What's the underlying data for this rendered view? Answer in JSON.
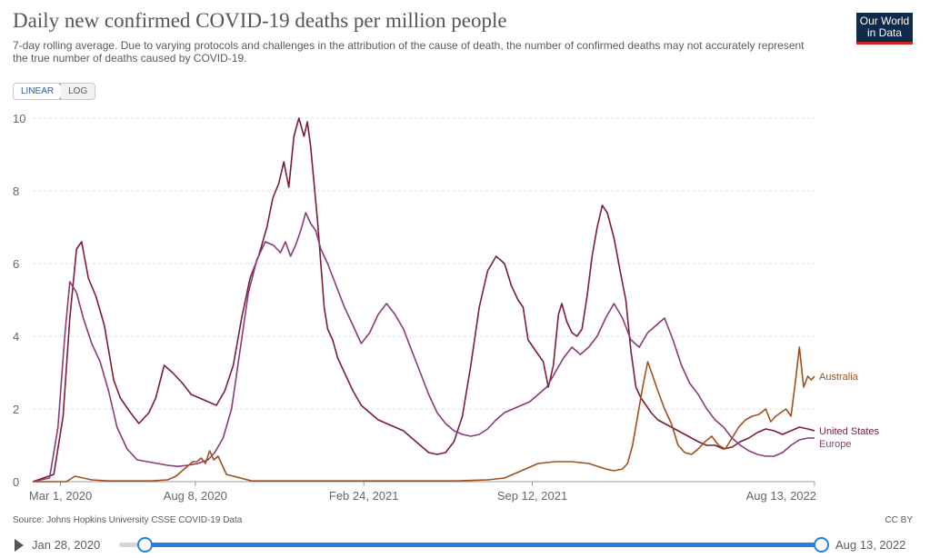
{
  "header": {
    "title": "Daily new confirmed COVID-19 deaths per million people",
    "subtitle": "7-day rolling average. Due to varying protocols and challenges in the attribution of the cause of death, the number of confirmed deaths may not accurately represent the true number of deaths caused by COVID-19.",
    "logo_line1": "Our World",
    "logo_line2": "in Data"
  },
  "controls": {
    "linear_label": "LINEAR",
    "log_label": "LOG"
  },
  "footer": {
    "source": "Source: Johns Hopkins University CSSE COVID-19 Data",
    "license": "CC BY"
  },
  "timeline": {
    "start_label": "Jan 28, 2020",
    "end_label": "Aug 13, 2022"
  },
  "colors": {
    "united_states": "#7a1e33",
    "europe": "#8a3a78",
    "australia": "#a0501c",
    "grid": "#dddddd",
    "axis_text": "#666666"
  },
  "chart_data": {
    "type": "line",
    "title": "Daily new confirmed COVID-19 deaths per million people",
    "xlabel": "",
    "ylabel": "",
    "ylim": [
      0,
      10
    ],
    "yticks": [
      "0",
      "2",
      "4",
      "6",
      "8",
      "10"
    ],
    "xlim": [
      0,
      928
    ],
    "x_unit": "days since Jan 28, 2020",
    "xticks": [
      {
        "x": 33,
        "label": "Mar 1, 2020"
      },
      {
        "x": 193,
        "label": "Aug 8, 2020"
      },
      {
        "x": 393,
        "label": "Feb 24, 2021"
      },
      {
        "x": 593,
        "label": "Sep 12, 2021"
      },
      {
        "x": 928,
        "label": "Aug 13, 2022"
      }
    ],
    "series": [
      {
        "name": "United States",
        "key": "united_states",
        "x": [
          0,
          25,
          36,
          44,
          52,
          58,
          66,
          75,
          85,
          96,
          104,
          116,
          126,
          138,
          146,
          156,
          166,
          178,
          188,
          198,
          208,
          218,
          228,
          238,
          248,
          258,
          268,
          278,
          285,
          292,
          298,
          304,
          310,
          316,
          322,
          326,
          330,
          334,
          338,
          342,
          346,
          350,
          356,
          362,
          370,
          380,
          390,
          400,
          410,
          420,
          430,
          440,
          450,
          460,
          470,
          480,
          490,
          500,
          510,
          520,
          530,
          540,
          550,
          560,
          568,
          576,
          582,
          588,
          594,
          600,
          606,
          612,
          618,
          624,
          628,
          634,
          640,
          646,
          652,
          658,
          664,
          670,
          676,
          682,
          690,
          698,
          704,
          710,
          716,
          722,
          728,
          734,
          742,
          750,
          758,
          766,
          774,
          782,
          790,
          800,
          810,
          820,
          830,
          840,
          850,
          860,
          870,
          880,
          890,
          900,
          910,
          920,
          928
        ],
        "values": [
          0,
          0.2,
          1.8,
          4.5,
          6.4,
          6.6,
          5.6,
          5.1,
          4.3,
          2.8,
          2.3,
          1.9,
          1.6,
          1.9,
          2.3,
          3.2,
          3.0,
          2.7,
          2.4,
          2.3,
          2.2,
          2.1,
          2.5,
          3.2,
          4.5,
          5.6,
          6.2,
          7.0,
          7.8,
          8.2,
          8.8,
          8.1,
          9.5,
          10.0,
          9.5,
          9.9,
          9.2,
          8.2,
          7.2,
          6.0,
          4.8,
          4.2,
          3.9,
          3.4,
          3.0,
          2.5,
          2.1,
          1.9,
          1.7,
          1.6,
          1.5,
          1.4,
          1.2,
          1.0,
          0.8,
          0.75,
          0.8,
          1.1,
          1.8,
          3.2,
          4.8,
          5.8,
          6.2,
          6.0,
          5.4,
          5.0,
          4.8,
          3.9,
          3.7,
          3.5,
          3.3,
          2.6,
          3.2,
          4.6,
          4.9,
          4.4,
          4.1,
          4.0,
          4.2,
          5.1,
          6.2,
          7.0,
          7.6,
          7.4,
          6.7,
          5.7,
          5.0,
          3.6,
          2.6,
          2.3,
          2.1,
          1.9,
          1.7,
          1.6,
          1.5,
          1.4,
          1.3,
          1.2,
          1.1,
          1.0,
          1.0,
          0.9,
          0.95,
          1.1,
          1.2,
          1.35,
          1.45,
          1.4,
          1.3,
          1.4,
          1.5,
          1.45,
          1.4
        ]
      },
      {
        "name": "Europe",
        "key": "europe",
        "x": [
          0,
          20,
          30,
          38,
          44,
          52,
          60,
          70,
          80,
          90,
          100,
          112,
          124,
          136,
          148,
          160,
          172,
          184,
          196,
          208,
          216,
          226,
          236,
          246,
          256,
          266,
          276,
          286,
          294,
          300,
          306,
          312,
          318,
          324,
          330,
          336,
          342,
          350,
          360,
          370,
          380,
          390,
          400,
          410,
          420,
          430,
          440,
          450,
          460,
          470,
          480,
          490,
          500,
          510,
          520,
          530,
          540,
          550,
          560,
          570,
          580,
          590,
          600,
          610,
          620,
          630,
          640,
          650,
          660,
          670,
          680,
          690,
          700,
          710,
          720,
          730,
          740,
          750,
          760,
          770,
          780,
          790,
          800,
          810,
          820,
          830,
          840,
          850,
          860,
          870,
          880,
          890,
          900,
          910,
          920,
          928
        ],
        "values": [
          0,
          0.1,
          1.5,
          4.0,
          5.5,
          5.2,
          4.5,
          3.8,
          3.3,
          2.5,
          1.5,
          0.9,
          0.6,
          0.55,
          0.5,
          0.45,
          0.42,
          0.45,
          0.5,
          0.6,
          0.8,
          1.2,
          2.0,
          3.6,
          5.2,
          6.1,
          6.6,
          6.5,
          6.3,
          6.6,
          6.2,
          6.5,
          6.9,
          7.4,
          7.1,
          6.9,
          6.4,
          6.0,
          5.4,
          4.8,
          4.3,
          3.8,
          4.1,
          4.6,
          4.9,
          4.6,
          4.2,
          3.6,
          3.0,
          2.4,
          1.9,
          1.6,
          1.4,
          1.3,
          1.25,
          1.3,
          1.45,
          1.7,
          1.9,
          2.0,
          2.1,
          2.2,
          2.4,
          2.6,
          3.0,
          3.4,
          3.7,
          3.5,
          3.7,
          4.0,
          4.5,
          4.9,
          4.5,
          3.9,
          3.7,
          4.1,
          4.3,
          4.5,
          3.9,
          3.2,
          2.7,
          2.4,
          2.0,
          1.7,
          1.5,
          1.2,
          1.0,
          0.85,
          0.75,
          0.7,
          0.7,
          0.8,
          1.0,
          1.15,
          1.2,
          1.2
        ]
      },
      {
        "name": "Australia",
        "key": "australia",
        "x": [
          0,
          40,
          50,
          60,
          70,
          90,
          120,
          140,
          160,
          170,
          180,
          190,
          195,
          200,
          205,
          210,
          215,
          220,
          230,
          260,
          300,
          350,
          400,
          450,
          500,
          540,
          560,
          580,
          600,
          620,
          640,
          660,
          680,
          690,
          700,
          706,
          712,
          718,
          724,
          730,
          736,
          742,
          750,
          758,
          766,
          774,
          782,
          790,
          798,
          806,
          814,
          822,
          830,
          838,
          846,
          854,
          862,
          870,
          876,
          882,
          888,
          894,
          900,
          905,
          910,
          915,
          920,
          924,
          928
        ],
        "values": [
          0,
          0,
          0.15,
          0.1,
          0.05,
          0.02,
          0.02,
          0.02,
          0.05,
          0.15,
          0.35,
          0.55,
          0.55,
          0.65,
          0.5,
          0.85,
          0.6,
          0.7,
          0.2,
          0.02,
          0.02,
          0.02,
          0.02,
          0.02,
          0.02,
          0.05,
          0.1,
          0.3,
          0.5,
          0.55,
          0.55,
          0.5,
          0.35,
          0.3,
          0.35,
          0.5,
          1.0,
          1.8,
          2.6,
          3.3,
          2.9,
          2.5,
          2.0,
          1.6,
          1.0,
          0.8,
          0.75,
          0.9,
          1.1,
          1.25,
          1.0,
          0.9,
          1.2,
          1.5,
          1.7,
          1.8,
          1.85,
          2.0,
          1.65,
          1.8,
          1.9,
          2.0,
          1.8,
          2.7,
          3.7,
          2.6,
          2.9,
          2.8,
          2.9
        ]
      }
    ]
  }
}
